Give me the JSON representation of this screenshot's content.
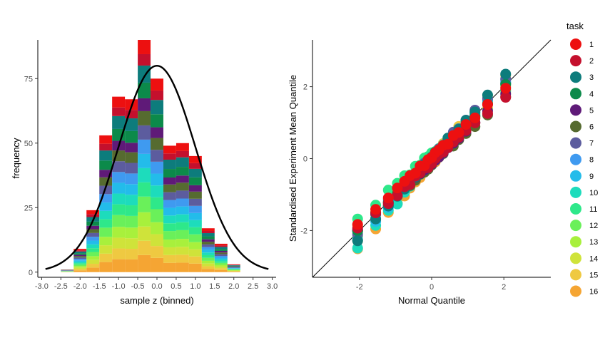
{
  "chart_data": [
    {
      "type": "bar",
      "subtype": "stacked-histogram-with-normal-curve",
      "xlabel": "sample z (binned)",
      "ylabel": "frequency",
      "xlim": [
        -3.1,
        3.1
      ],
      "ylim": [
        -2,
        90
      ],
      "x_ticks": [
        "-3.0",
        "-2.5",
        "-2.0",
        "-1.5",
        "-1.0",
        "-0.5",
        "0.0",
        "0.5",
        "1.0",
        "1.5",
        "2.0",
        "2.5",
        "3.0"
      ],
      "y_ticks": [
        "0",
        "25",
        "50",
        "75"
      ],
      "bin_width": 0.333,
      "bin_centers": [
        -2.667,
        -2.333,
        -2.0,
        -1.667,
        -1.333,
        -1.0,
        -0.667,
        -0.333,
        0.0,
        0.333,
        0.667,
        1.0,
        1.333,
        1.667,
        2.0,
        2.333,
        2.667
      ],
      "bin_totals": [
        0,
        1,
        9,
        24,
        53,
        68,
        67,
        90,
        75,
        49,
        50,
        45,
        17,
        11,
        3,
        0,
        0
      ],
      "normal_curve": {
        "mean": 0.0,
        "sd": 1.0,
        "peak": 80,
        "range": [
          -2.9,
          2.9
        ]
      }
    },
    {
      "type": "scatter",
      "subtype": "qq-plot",
      "xlabel": "Normal Quantile",
      "ylabel": "Standardised Experiment Mean Quantile",
      "xlim": [
        -3.3,
        3.3
      ],
      "ylim": [
        -3.3,
        3.3
      ],
      "x_ticks": [
        "-2",
        "0",
        "2"
      ],
      "y_ticks": [
        "-2",
        "0",
        "2"
      ],
      "reference_line": {
        "slope": 1,
        "intercept": 0
      },
      "quantiles": [
        -2.05,
        -1.55,
        -1.2,
        -0.95,
        -0.75,
        -0.6,
        -0.45,
        -0.32,
        -0.2,
        -0.1,
        0.0,
        0.1,
        0.2,
        0.32,
        0.45,
        0.6,
        0.75,
        0.95,
        1.2,
        1.55,
        2.05
      ]
    }
  ],
  "legend": {
    "title": "task",
    "entries": [
      {
        "label": "1",
        "color": "#ED1010"
      },
      {
        "label": "2",
        "color": "#C4102D"
      },
      {
        "label": "3",
        "color": "#0D7C7C"
      },
      {
        "label": "4",
        "color": "#0C8A4A"
      },
      {
        "label": "5",
        "color": "#5F1A78"
      },
      {
        "label": "6",
        "color": "#566B30"
      },
      {
        "label": "7",
        "color": "#5C5C9E"
      },
      {
        "label": "8",
        "color": "#3F9AF0"
      },
      {
        "label": "9",
        "color": "#23BCEA"
      },
      {
        "label": "10",
        "color": "#1DDCBC"
      },
      {
        "label": "11",
        "color": "#2EE88A"
      },
      {
        "label": "12",
        "color": "#6AF05A"
      },
      {
        "label": "13",
        "color": "#A8F03C"
      },
      {
        "label": "14",
        "color": "#CFE33A"
      },
      {
        "label": "15",
        "color": "#EFC941"
      },
      {
        "label": "16",
        "color": "#F5A533"
      }
    ]
  }
}
